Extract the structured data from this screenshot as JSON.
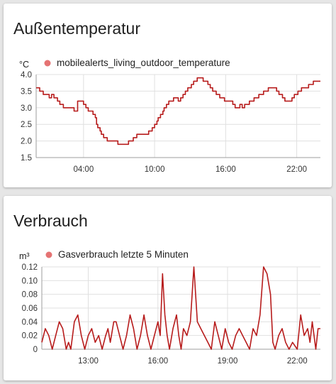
{
  "cards": [
    {
      "title": "Außentemperatur",
      "chart_data": {
        "type": "line",
        "unit": "°C",
        "ylim": [
          1.5,
          4.0
        ],
        "yticks": [
          "1.5",
          "2.0",
          "2.5",
          "3.0",
          "3.5",
          "4.0"
        ],
        "xlim": [
          0,
          24
        ],
        "xticks": [
          {
            "x": 4,
            "label": "04:00"
          },
          {
            "x": 10,
            "label": "10:00"
          },
          {
            "x": 16,
            "label": "16:00"
          },
          {
            "x": 22,
            "label": "22:00"
          }
        ],
        "grid": true,
        "step": true,
        "legend_position": "top",
        "series": [
          {
            "name": "mobilealerts_living_outdoor_temperature",
            "color": "#b71c1c",
            "points": [
              [
                0,
                3.6
              ],
              [
                0.3,
                3.5
              ],
              [
                0.6,
                3.4
              ],
              [
                1.1,
                3.3
              ],
              [
                1.3,
                3.4
              ],
              [
                1.5,
                3.3
              ],
              [
                1.8,
                3.2
              ],
              [
                2,
                3.1
              ],
              [
                2.3,
                3.0
              ],
              [
                3.2,
                2.9
              ],
              [
                3.5,
                3.2
              ],
              [
                4.0,
                3.1
              ],
              [
                4.2,
                3.0
              ],
              [
                4.4,
                2.9
              ],
              [
                4.8,
                2.8
              ],
              [
                5.0,
                2.7
              ],
              [
                5.1,
                2.5
              ],
              [
                5.2,
                2.4
              ],
              [
                5.4,
                2.3
              ],
              [
                5.5,
                2.2
              ],
              [
                5.7,
                2.1
              ],
              [
                6.0,
                2.0
              ],
              [
                6.9,
                1.9
              ],
              [
                7.8,
                2.0
              ],
              [
                8.2,
                2.1
              ],
              [
                8.5,
                2.2
              ],
              [
                9.5,
                2.3
              ],
              [
                9.8,
                2.4
              ],
              [
                10.0,
                2.5
              ],
              [
                10.2,
                2.6
              ],
              [
                10.3,
                2.7
              ],
              [
                10.5,
                2.8
              ],
              [
                10.7,
                2.9
              ],
              [
                10.8,
                3.0
              ],
              [
                11.0,
                3.1
              ],
              [
                11.2,
                3.2
              ],
              [
                11.6,
                3.3
              ],
              [
                12.0,
                3.2
              ],
              [
                12.2,
                3.3
              ],
              [
                12.4,
                3.4
              ],
              [
                12.6,
                3.5
              ],
              [
                12.8,
                3.6
              ],
              [
                13.1,
                3.7
              ],
              [
                13.3,
                3.8
              ],
              [
                13.6,
                3.9
              ],
              [
                14.1,
                3.8
              ],
              [
                14.5,
                3.7
              ],
              [
                14.7,
                3.6
              ],
              [
                14.9,
                3.5
              ],
              [
                15.2,
                3.4
              ],
              [
                15.5,
                3.3
              ],
              [
                15.9,
                3.2
              ],
              [
                16.6,
                3.1
              ],
              [
                16.8,
                3.0
              ],
              [
                17.2,
                3.1
              ],
              [
                17.4,
                3.0
              ],
              [
                17.6,
                3.1
              ],
              [
                18.0,
                3.2
              ],
              [
                18.4,
                3.3
              ],
              [
                18.8,
                3.4
              ],
              [
                19.2,
                3.5
              ],
              [
                19.6,
                3.6
              ],
              [
                20.3,
                3.5
              ],
              [
                20.5,
                3.4
              ],
              [
                20.8,
                3.3
              ],
              [
                21.0,
                3.2
              ],
              [
                21.6,
                3.3
              ],
              [
                21.8,
                3.4
              ],
              [
                22.1,
                3.5
              ],
              [
                22.4,
                3.6
              ],
              [
                23.0,
                3.7
              ],
              [
                23.4,
                3.8
              ],
              [
                24,
                3.8
              ]
            ]
          }
        ]
      }
    },
    {
      "title": "Verbrauch",
      "chart_data": {
        "type": "line",
        "unit": "m³",
        "ylim": [
          0,
          0.12
        ],
        "yticks": [
          "0",
          "0.02",
          "0.04",
          "0.06",
          "0.08",
          "0.10",
          "0.12"
        ],
        "xlim": [
          11,
          23
        ],
        "xticks": [
          {
            "x": 13,
            "label": "13:00"
          },
          {
            "x": 16,
            "label": "16:00"
          },
          {
            "x": 19,
            "label": "19:00"
          },
          {
            "x": 22,
            "label": "22:00"
          }
        ],
        "grid": true,
        "step": false,
        "legend_position": "top",
        "series": [
          {
            "name": "Gasverbrauch letzte 5 Minuten",
            "color": "#b71c1c",
            "points": [
              [
                11,
                0.01
              ],
              [
                11.15,
                0.03
              ],
              [
                11.3,
                0.02
              ],
              [
                11.45,
                0
              ],
              [
                11.6,
                0.02
              ],
              [
                11.75,
                0.04
              ],
              [
                11.9,
                0.03
              ],
              [
                12.05,
                0
              ],
              [
                12.15,
                0.01
              ],
              [
                12.25,
                0
              ],
              [
                12.4,
                0.04
              ],
              [
                12.55,
                0.05
              ],
              [
                12.7,
                0.02
              ],
              [
                12.85,
                0
              ],
              [
                13.0,
                0.02
              ],
              [
                13.15,
                0.03
              ],
              [
                13.3,
                0.01
              ],
              [
                13.45,
                0.02
              ],
              [
                13.6,
                0
              ],
              [
                13.75,
                0.02
              ],
              [
                13.85,
                0.03
              ],
              [
                13.95,
                0.01
              ],
              [
                14.1,
                0.04
              ],
              [
                14.2,
                0.04
              ],
              [
                14.35,
                0.02
              ],
              [
                14.5,
                0
              ],
              [
                14.65,
                0.02
              ],
              [
                14.8,
                0.05
              ],
              [
                14.95,
                0.03
              ],
              [
                15.1,
                0
              ],
              [
                15.25,
                0.02
              ],
              [
                15.4,
                0.05
              ],
              [
                15.55,
                0.02
              ],
              [
                15.7,
                0
              ],
              [
                15.85,
                0.02
              ],
              [
                16.0,
                0.04
              ],
              [
                16.1,
                0.02
              ],
              [
                16.2,
                0.11
              ],
              [
                16.3,
                0.05
              ],
              [
                16.4,
                0.02
              ],
              [
                16.5,
                0
              ],
              [
                16.65,
                0.03
              ],
              [
                16.8,
                0.05
              ],
              [
                16.9,
                0.02
              ],
              [
                17.0,
                0
              ],
              [
                17.1,
                0.03
              ],
              [
                17.25,
                0.02
              ],
              [
                17.4,
                0.04
              ],
              [
                17.55,
                0.12
              ],
              [
                17.7,
                0.04
              ],
              [
                17.85,
                0.03
              ],
              [
                18.0,
                0.02
              ],
              [
                18.15,
                0.01
              ],
              [
                18.3,
                0
              ],
              [
                18.45,
                0.04
              ],
              [
                18.6,
                0.02
              ],
              [
                18.75,
                0
              ],
              [
                18.9,
                0.03
              ],
              [
                19.05,
                0.01
              ],
              [
                19.2,
                0
              ],
              [
                19.35,
                0.02
              ],
              [
                19.5,
                0.03
              ],
              [
                19.65,
                0.02
              ],
              [
                19.8,
                0.01
              ],
              [
                19.95,
                0
              ],
              [
                20.1,
                0.03
              ],
              [
                20.25,
                0.02
              ],
              [
                20.4,
                0.05
              ],
              [
                20.55,
                0.12
              ],
              [
                20.7,
                0.11
              ],
              [
                20.85,
                0.08
              ],
              [
                20.95,
                0.01
              ],
              [
                21.05,
                0
              ],
              [
                21.2,
                0.02
              ],
              [
                21.35,
                0.03
              ],
              [
                21.5,
                0.01
              ],
              [
                21.65,
                0
              ],
              [
                21.8,
                0.01
              ],
              [
                22.0,
                0
              ],
              [
                22.15,
                0.05
              ],
              [
                22.3,
                0.02
              ],
              [
                22.45,
                0.03
              ],
              [
                22.55,
                0.01
              ],
              [
                22.65,
                0.04
              ],
              [
                22.8,
                0
              ],
              [
                22.9,
                0.03
              ],
              [
                23,
                0.03
              ]
            ]
          }
        ]
      }
    }
  ]
}
